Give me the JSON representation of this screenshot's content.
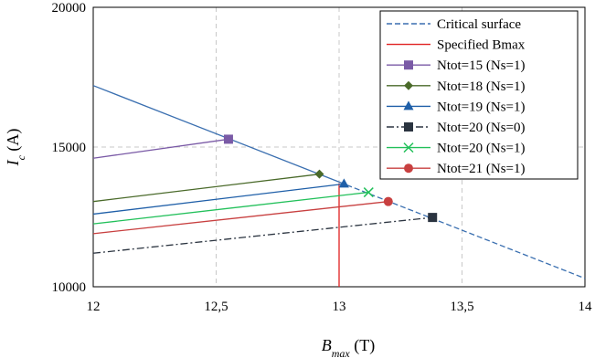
{
  "chart_data": {
    "type": "line",
    "xlabel": {
      "main": "B",
      "sub": "max",
      "unit": " (T)"
    },
    "ylabel": {
      "main": "I",
      "sub": "c",
      "unit": " (A)"
    },
    "xlim": [
      12,
      14
    ],
    "ylim": [
      10000,
      20000
    ],
    "xticks": [
      12,
      12.5,
      13,
      13.5,
      14
    ],
    "xtick_labels": [
      "12",
      "12,5",
      "13",
      "13,5",
      "14"
    ],
    "yticks": [
      10000,
      15000,
      20000
    ],
    "ytick_labels": [
      "10000",
      "15000",
      "20000"
    ],
    "grid": true,
    "legend_position": "top-right",
    "series": [
      {
        "name": "Critical surface",
        "color": "#3a6fb0",
        "dash": "6,3",
        "marker": "none",
        "x": [
          12,
          14
        ],
        "y": [
          17200,
          10300
        ]
      },
      {
        "name": "Specified Bmax",
        "color": "#e02020",
        "dash": "",
        "marker": "none",
        "x": [
          13,
          13
        ],
        "y": [
          10000,
          13700
        ]
      },
      {
        "name": "Ntot=15 (Ns=1)",
        "color": "#7a5aa6",
        "dash": "",
        "marker": "square",
        "x": [
          12,
          12.55
        ],
        "y": [
          14600,
          15280
        ]
      },
      {
        "name": "Ntot=18 (Ns=1)",
        "color": "#4a6a2a",
        "dash": "",
        "marker": "diamond",
        "x": [
          12,
          12.92
        ],
        "y": [
          13050,
          14030
        ]
      },
      {
        "name": "Ntot=19 (Ns=1)",
        "color": "#1f5fa8",
        "dash": "",
        "marker": "triangle",
        "x": [
          12,
          13.02
        ],
        "y": [
          12600,
          13680
        ]
      },
      {
        "name": "Ntot=20 (Ns=0)",
        "color": "#2b3440",
        "dash": "8,3,2,3",
        "marker": "square",
        "x": [
          12,
          13.38
        ],
        "y": [
          11200,
          12480
        ]
      },
      {
        "name": "Ntot=20 (Ns=1)",
        "color": "#22c05a",
        "dash": "",
        "marker": "x",
        "x": [
          12,
          13.12
        ],
        "y": [
          12250,
          13380
        ]
      },
      {
        "name": "Ntot=21 (Ns=1)",
        "color": "#c84040",
        "dash": "",
        "marker": "circle",
        "x": [
          12,
          13.2
        ],
        "y": [
          11900,
          13050
        ]
      }
    ],
    "critical_line_color": "#3a6fb0",
    "critical_solid_until_x": 13.0
  }
}
